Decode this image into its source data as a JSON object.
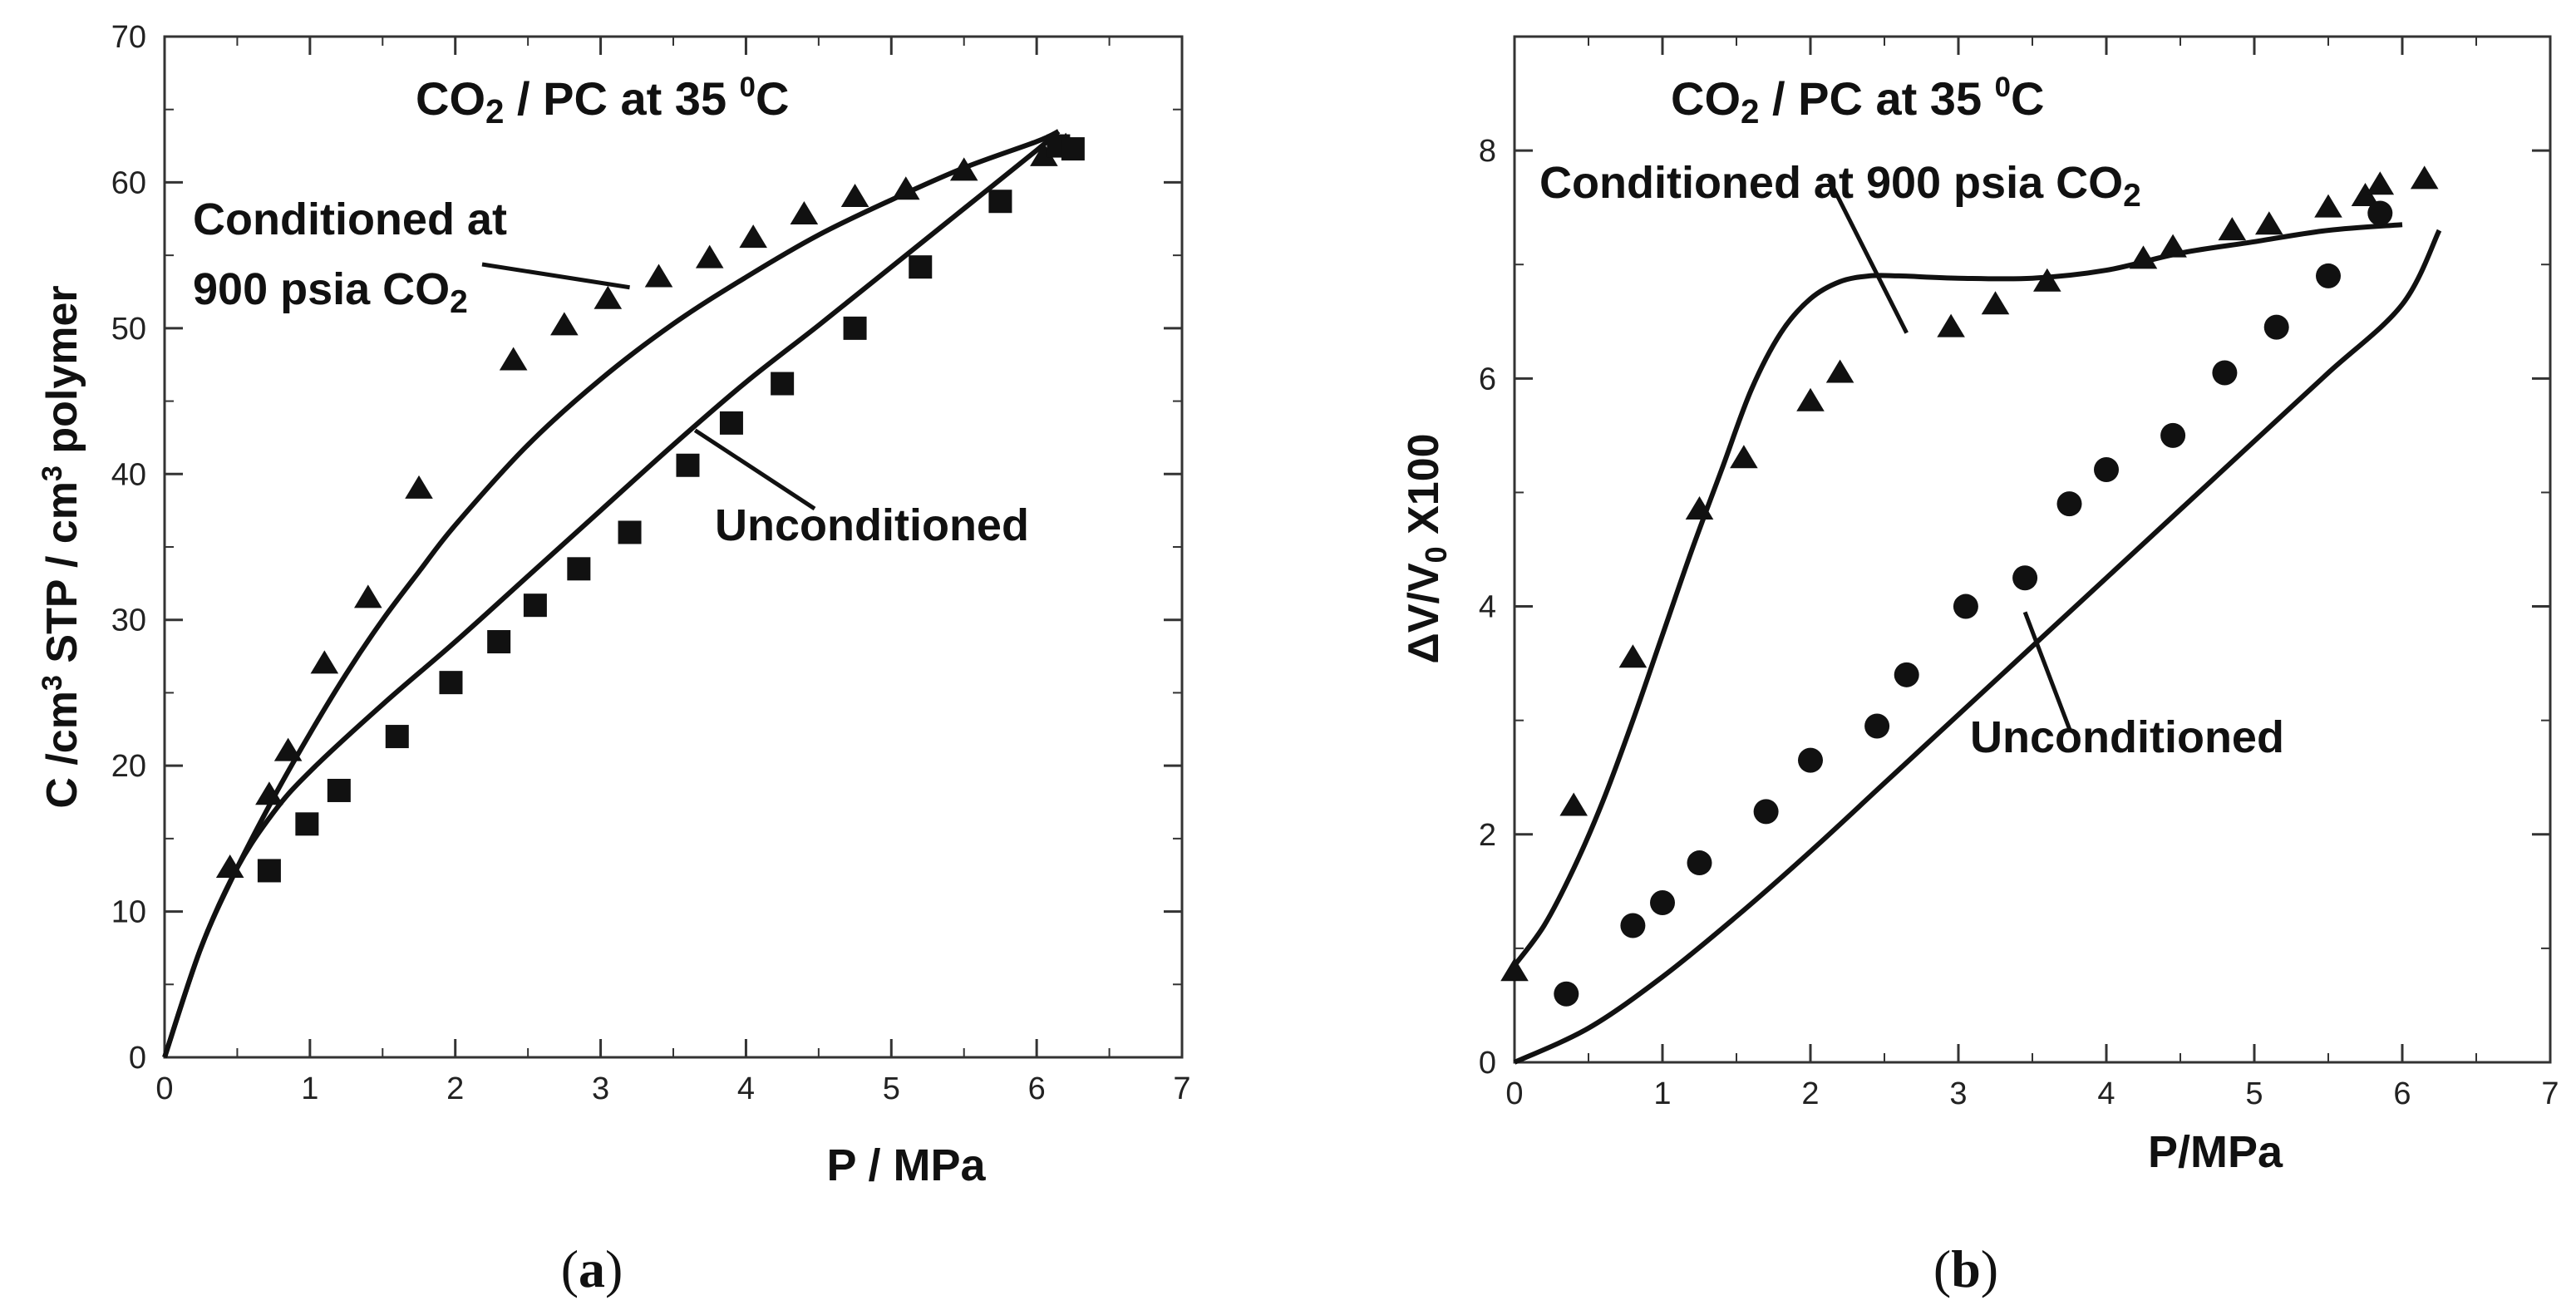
{
  "chart_data": [
    {
      "type": "scatter",
      "panel_label": "(a)",
      "title_main": "CO",
      "title_sub": "2",
      "title_mid": " / PC at 35 ",
      "title_sup": "0",
      "title_end": "C",
      "xlabel": "P / MPa",
      "ylabel_parts": [
        "C /cm",
        "3",
        " STP / cm",
        "3",
        " polymer"
      ],
      "xlim": [
        0,
        7
      ],
      "ylim": [
        0,
        70
      ],
      "xticks": [
        "0",
        "1",
        "2",
        "3",
        "4",
        "5",
        "6",
        "7"
      ],
      "yticks": [
        "0",
        "10",
        "20",
        "30",
        "40",
        "50",
        "60",
        "70"
      ],
      "grid": false,
      "annotations": [
        {
          "name": "conditioned",
          "lines": [
            "Conditioned at",
            "900 psia CO",
            "2"
          ],
          "arrow_to": [
            3.2,
            52.8
          ]
        },
        {
          "name": "unconditioned",
          "lines": [
            "Unconditioned"
          ],
          "arrow_to": [
            3.65,
            43
          ]
        }
      ],
      "series": [
        {
          "name": "Conditioned at 900 psia CO2 (data)",
          "marker": "triangle",
          "x": [
            0.45,
            0.72,
            0.85,
            1.1,
            1.4,
            1.75,
            2.4,
            2.75,
            3.05,
            3.4,
            3.75,
            4.05,
            4.4,
            4.75,
            5.1,
            5.5,
            6.05,
            6.2
          ],
          "y": [
            13,
            18,
            21,
            27,
            31.5,
            39,
            47.8,
            50.2,
            52,
            53.5,
            54.8,
            56.2,
            57.8,
            59,
            59.5,
            60.8,
            61.8,
            62.5
          ]
        },
        {
          "name": "Unconditioned (data)",
          "marker": "square",
          "x": [
            0.72,
            0.98,
            1.2,
            1.6,
            1.97,
            2.3,
            2.55,
            2.85,
            3.2,
            3.6,
            3.9,
            4.25,
            4.75,
            5.2,
            5.75,
            6.15,
            6.25
          ],
          "y": [
            12.8,
            16,
            18.3,
            22,
            25.7,
            28.5,
            31,
            33.5,
            36,
            40.6,
            43.5,
            46.2,
            50,
            54.2,
            58.7,
            62.5,
            62.3
          ]
        },
        {
          "name": "Conditioned model",
          "marker": "line",
          "x": [
            0,
            0.25,
            0.5,
            0.75,
            1.0,
            1.25,
            1.5,
            1.75,
            2.0,
            2.5,
            3.0,
            3.5,
            4.0,
            4.5,
            5.0,
            5.5,
            6.0,
            6.15
          ],
          "y": [
            0,
            7.5,
            13,
            17.8,
            22.2,
            26.3,
            30,
            33.3,
            36.5,
            42,
            46.5,
            50.3,
            53.5,
            56.4,
            58.8,
            61,
            62.8,
            63.5
          ]
        },
        {
          "name": "Unconditioned model",
          "marker": "line",
          "x": [
            0,
            0.25,
            0.5,
            0.75,
            1.0,
            1.5,
            2.0,
            2.5,
            3.0,
            3.5,
            4.0,
            4.5,
            5.0,
            5.5,
            6.0,
            6.15
          ],
          "y": [
            0,
            7.5,
            13,
            16.8,
            19.6,
            24.2,
            28.5,
            33,
            37.5,
            42,
            46.3,
            50.2,
            54.2,
            58.2,
            62.2,
            63.5
          ]
        }
      ]
    },
    {
      "type": "scatter",
      "panel_label": "(b)",
      "title_main": "CO",
      "title_sub": "2",
      "title_mid": " / PC at 35 ",
      "title_sup": "0",
      "title_end": "C",
      "xlabel": "P/MPa",
      "ylabel_parts": [
        "ΔV/V",
        "0",
        " X100"
      ],
      "xlim": [
        0,
        7
      ],
      "ylim": [
        0,
        9
      ],
      "xticks": [
        "0",
        "1",
        "2",
        "3",
        "4",
        "5",
        "6",
        "7"
      ],
      "yticks": [
        "0",
        "2",
        "4",
        "6",
        "8"
      ],
      "grid": false,
      "annotations": [
        {
          "name": "conditioned",
          "lines": [
            "Conditioned at 900 psia CO",
            "2"
          ],
          "arrow_to": [
            2.65,
            6.4
          ]
        },
        {
          "name": "unconditioned",
          "lines": [
            "Unconditioned"
          ],
          "arrow_to": [
            3.45,
            3.95
          ]
        }
      ],
      "series": [
        {
          "name": "Conditioned at 900 psia CO2 (data)",
          "marker": "triangle",
          "x": [
            0.0,
            0.4,
            0.8,
            1.25,
            1.55,
            2.0,
            2.2,
            2.95,
            3.25,
            3.6,
            4.25,
            4.45,
            4.85,
            5.1,
            5.5,
            5.75,
            5.85,
            6.15
          ],
          "y": [
            0.8,
            2.25,
            3.55,
            4.85,
            5.3,
            5.8,
            6.05,
            6.45,
            6.65,
            6.85,
            7.05,
            7.15,
            7.3,
            7.35,
            7.5,
            7.6,
            7.7,
            7.75
          ]
        },
        {
          "name": "Unconditioned (data)",
          "marker": "circle",
          "x": [
            0.35,
            0.8,
            1.0,
            1.25,
            1.7,
            2.0,
            2.45,
            2.65,
            3.05,
            3.45,
            3.75,
            4.0,
            4.45,
            4.8,
            5.15,
            5.5,
            5.85
          ],
          "y": [
            0.6,
            1.2,
            1.4,
            1.75,
            2.2,
            2.65,
            2.95,
            3.4,
            4.0,
            4.25,
            4.9,
            5.2,
            5.5,
            6.05,
            6.45,
            6.9,
            7.45
          ]
        },
        {
          "name": "Conditioned model",
          "marker": "line",
          "x": [
            0,
            0.2,
            0.4,
            0.6,
            0.8,
            1.0,
            1.2,
            1.4,
            1.6,
            1.8,
            2.0,
            2.2,
            2.4,
            2.6,
            3.0,
            3.5,
            4.0,
            4.5,
            5.0,
            5.5,
            6.0
          ],
          "y": [
            0.85,
            1.2,
            1.7,
            2.3,
            3.0,
            3.75,
            4.5,
            5.2,
            5.9,
            6.4,
            6.7,
            6.85,
            6.9,
            6.9,
            6.88,
            6.88,
            6.95,
            7.1,
            7.2,
            7.3,
            7.35
          ]
        },
        {
          "name": "Unconditioned model",
          "marker": "line",
          "x": [
            0,
            0.5,
            1.0,
            1.5,
            2.0,
            2.5,
            3.0,
            3.5,
            4.0,
            4.5,
            5.0,
            5.5,
            6.0,
            6.25
          ],
          "y": [
            0,
            0.3,
            0.75,
            1.28,
            1.85,
            2.45,
            3.05,
            3.65,
            4.25,
            4.85,
            5.45,
            6.05,
            6.65,
            7.3
          ]
        }
      ]
    }
  ]
}
